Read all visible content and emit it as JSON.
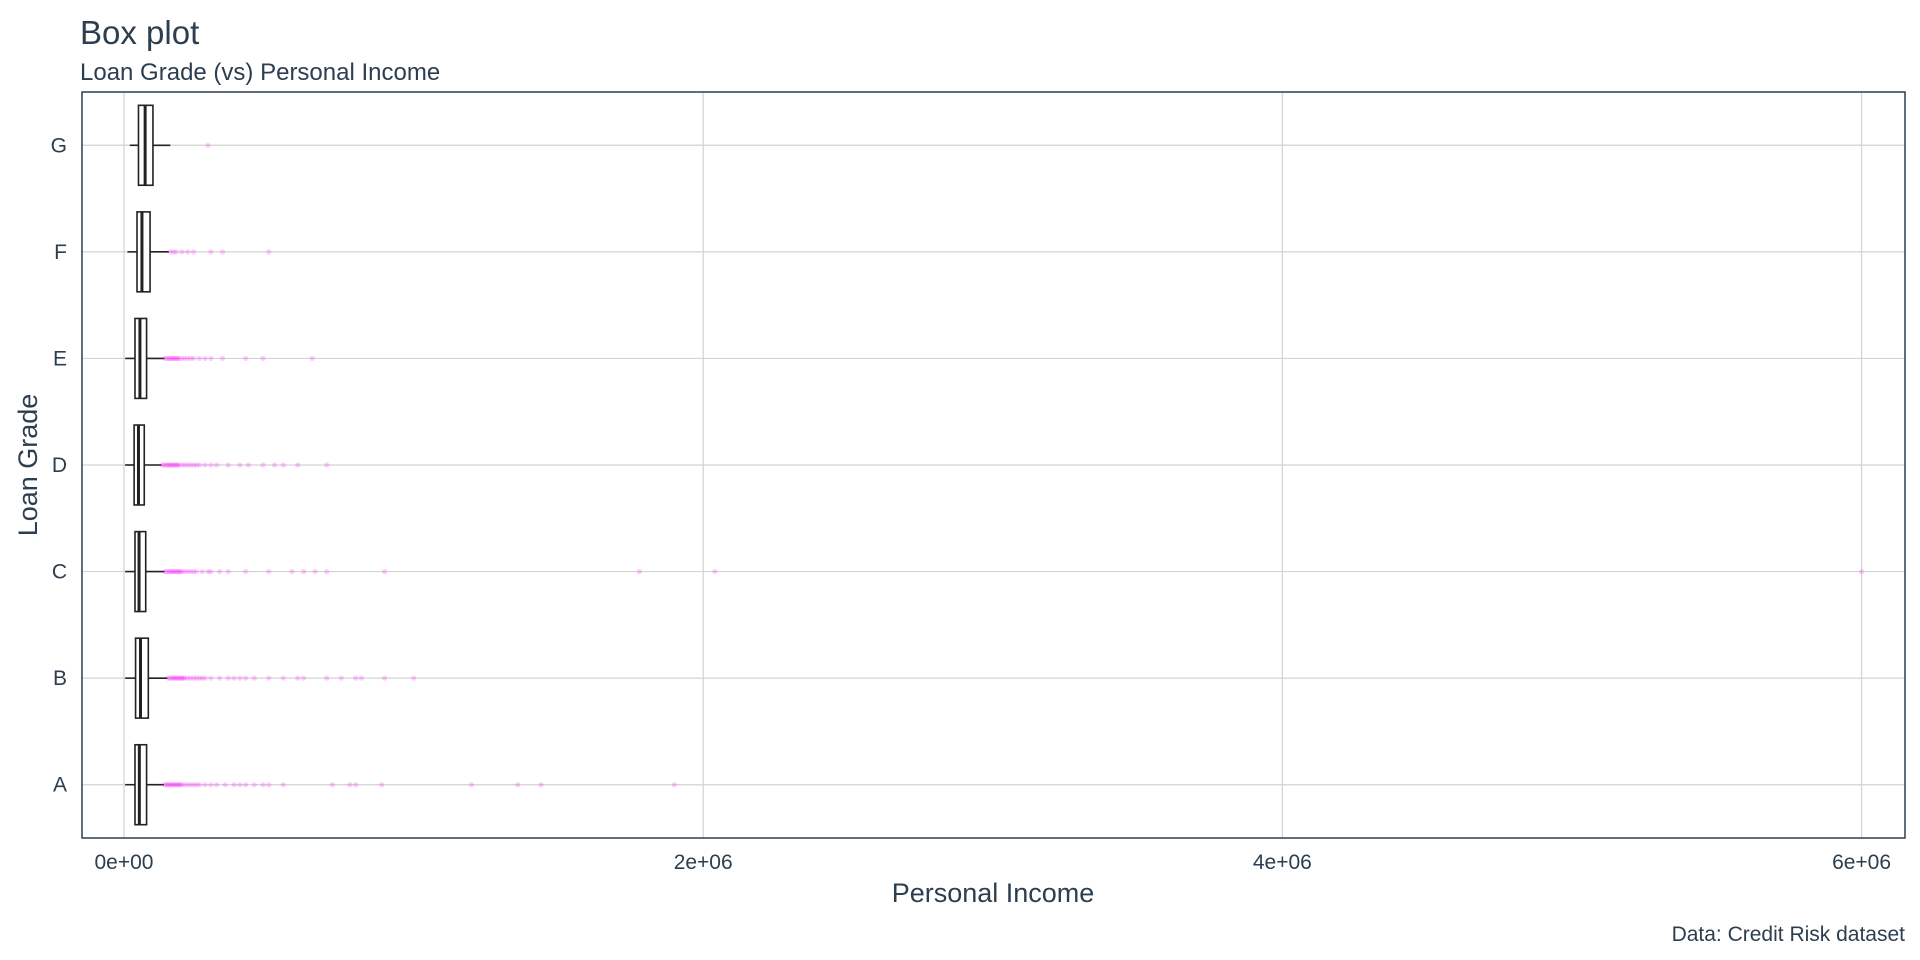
{
  "chart_data": {
    "type": "box",
    "title": "Box plot",
    "subtitle": "Loan Grade (vs) Personal Income",
    "xlabel": "Personal Income",
    "ylabel": "Loan Grade",
    "caption": "Data: Credit Risk dataset",
    "xlim": [
      -145000,
      6150000
    ],
    "x_ticks": [
      0,
      2000000,
      4000000,
      6000000
    ],
    "x_tick_labels": [
      "0e+00",
      "2e+06",
      "4e+06",
      "6e+06"
    ],
    "categories": [
      "A",
      "B",
      "C",
      "D",
      "E",
      "F",
      "G"
    ],
    "grid": true,
    "outlier_color": "#ff00ff",
    "boxes": [
      {
        "category": "A",
        "min": 4000,
        "q1": 38000,
        "median": 53000,
        "q3": 78000,
        "max": 138000,
        "outliers": [
          140000,
          145000,
          150000,
          155000,
          160000,
          165000,
          170000,
          175000,
          180000,
          185000,
          190000,
          195000,
          200000,
          210000,
          220000,
          230000,
          240000,
          250000,
          260000,
          280000,
          300000,
          320000,
          350000,
          380000,
          400000,
          420000,
          450000,
          480000,
          500000,
          550000,
          720000,
          780000,
          800000,
          890000,
          1200000,
          1360000,
          1440000,
          1900000
        ]
      },
      {
        "category": "B",
        "min": 4000,
        "q1": 40000,
        "median": 57000,
        "q3": 84000,
        "max": 150000,
        "outliers": [
          152000,
          158000,
          165000,
          170000,
          175000,
          180000,
          185000,
          190000,
          195000,
          200000,
          205000,
          210000,
          220000,
          230000,
          240000,
          250000,
          260000,
          270000,
          280000,
          300000,
          330000,
          360000,
          380000,
          400000,
          420000,
          450000,
          500000,
          550000,
          600000,
          620000,
          700000,
          750000,
          800000,
          820000,
          900000,
          1000000
        ]
      },
      {
        "category": "C",
        "min": 4000,
        "q1": 38000,
        "median": 52000,
        "q3": 75000,
        "max": 140000,
        "outliers": [
          142000,
          148000,
          155000,
          160000,
          165000,
          170000,
          175000,
          180000,
          185000,
          190000,
          195000,
          200000,
          210000,
          220000,
          230000,
          240000,
          250000,
          270000,
          290000,
          300000,
          330000,
          360000,
          420000,
          500000,
          580000,
          620000,
          660000,
          700000,
          900000,
          1780000,
          2040000,
          6000000
        ]
      },
      {
        "category": "D",
        "min": 4000,
        "q1": 35000,
        "median": 50000,
        "q3": 70000,
        "max": 130000,
        "outliers": [
          132000,
          138000,
          145000,
          150000,
          155000,
          160000,
          165000,
          170000,
          175000,
          180000,
          185000,
          190000,
          200000,
          210000,
          220000,
          230000,
          240000,
          250000,
          260000,
          280000,
          300000,
          320000,
          360000,
          400000,
          430000,
          480000,
          520000,
          550000,
          600000,
          700000
        ]
      },
      {
        "category": "E",
        "min": 4000,
        "q1": 38000,
        "median": 55000,
        "q3": 78000,
        "max": 140000,
        "outliers": [
          142000,
          148000,
          155000,
          160000,
          165000,
          170000,
          175000,
          180000,
          185000,
          190000,
          200000,
          210000,
          220000,
          230000,
          240000,
          260000,
          280000,
          300000,
          340000,
          420000,
          480000,
          650000
        ]
      },
      {
        "category": "F",
        "min": 12000,
        "q1": 45000,
        "median": 62000,
        "q3": 90000,
        "max": 155000,
        "outliers": [
          160000,
          170000,
          180000,
          200000,
          220000,
          240000,
          300000,
          340000,
          500000
        ]
      },
      {
        "category": "G",
        "min": 20000,
        "q1": 50000,
        "median": 73000,
        "q3": 100000,
        "max": 160000,
        "outliers": [
          290000
        ]
      }
    ]
  }
}
